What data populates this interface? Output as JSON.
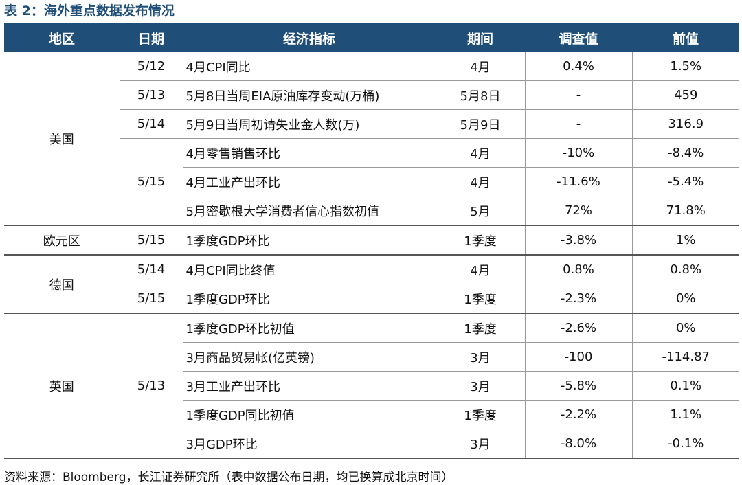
{
  "title": "表 2：海外重点数据发布情况",
  "headers": {
    "region": "地区",
    "date": "日期",
    "indicator": "经济指标",
    "period": "期间",
    "survey": "调查值",
    "previous": "前值"
  },
  "groups": {
    "us": {
      "region": "美国",
      "rows": [
        {
          "date": "5/12",
          "indicator": "4月CPI同比",
          "period": "4月",
          "survey": "0.4%",
          "previous": "1.5%"
        },
        {
          "date": "5/13",
          "indicator": "5月8日当周EIA原油库存变动(万桶)",
          "period": "5月8日",
          "survey": "-",
          "previous": "459"
        },
        {
          "date": "5/14",
          "indicator": "5月9日当周初请失业金人数(万)",
          "period": "5月9日",
          "survey": "-",
          "previous": "316.9"
        },
        {
          "date": "5/15",
          "indicator": "4月零售销售环比",
          "period": "4月",
          "survey": "-10%",
          "previous": "-8.4%"
        },
        {
          "indicator": "4月工业产出环比",
          "period": "4月",
          "survey": "-11.6%",
          "previous": "-5.4%"
        },
        {
          "indicator": "5月密歇根大学消费者信心指数初值",
          "period": "5月",
          "survey": "72%",
          "previous": "71.8%"
        }
      ]
    },
    "eurozone": {
      "region": "欧元区",
      "rows": [
        {
          "date": "5/15",
          "indicator": "1季度GDP环比",
          "period": "1季度",
          "survey": "-3.8%",
          "previous": "1%"
        }
      ]
    },
    "germany": {
      "region": "德国",
      "rows": [
        {
          "date": "5/14",
          "indicator": "4月CPI同比终值",
          "period": "4月",
          "survey": "0.8%",
          "previous": "0.8%"
        },
        {
          "date": "5/15",
          "indicator": "1季度GDP环比",
          "period": "1季度",
          "survey": "-2.3%",
          "previous": "0%"
        }
      ]
    },
    "uk": {
      "region": "英国",
      "rows": [
        {
          "date": "5/13",
          "indicator": "1季度GDP环比初值",
          "period": "1季度",
          "survey": "-2.6%",
          "previous": "0%"
        },
        {
          "indicator": "3月商品贸易帐(亿英镑)",
          "period": "3月",
          "survey": "-100",
          "previous": "-114.87"
        },
        {
          "indicator": "3月工业产出环比",
          "period": "3月",
          "survey": "-5.8%",
          "previous": "0.1%"
        },
        {
          "indicator": "1季度GDP同比初值",
          "period": "1季度",
          "survey": "-2.2%",
          "previous": "1.1%"
        },
        {
          "indicator": "3月GDP环比",
          "period": "3月",
          "survey": "-8.0%",
          "previous": "-0.1%"
        }
      ]
    }
  },
  "source": "资料来源：Bloomberg，长江证券研究所（表中数据公布日期，均已换算成北京时间）"
}
